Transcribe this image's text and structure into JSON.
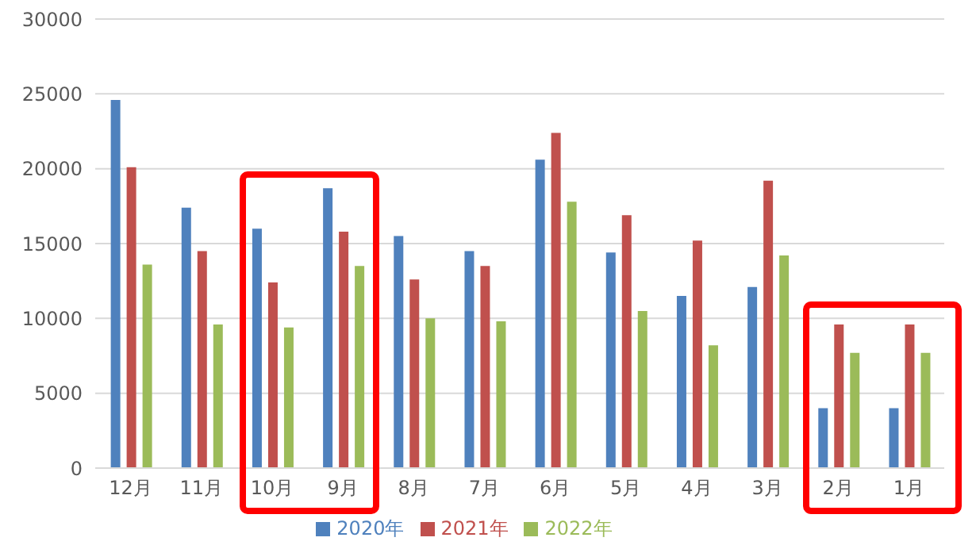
{
  "chart_data": {
    "type": "bar",
    "categories": [
      "12月",
      "11月",
      "10月",
      "9月",
      "8月",
      "7月",
      "6月",
      "5月",
      "4月",
      "3月",
      "2月",
      "1月"
    ],
    "series": [
      {
        "name": "2020年",
        "color": "#4f81bd",
        "values": [
          24600,
          17400,
          16000,
          18700,
          15500,
          14500,
          20600,
          14400,
          11500,
          12100,
          4000,
          4000
        ]
      },
      {
        "name": "2021年",
        "color": "#c0504d",
        "values": [
          20100,
          14500,
          12400,
          15800,
          12600,
          13500,
          22400,
          16900,
          15200,
          19200,
          9600,
          9600
        ]
      },
      {
        "name": "2022年",
        "color": "#9bbb59",
        "values": [
          13600,
          9600,
          9400,
          13500,
          10000,
          9800,
          17800,
          10500,
          8200,
          14200,
          7700,
          7700
        ]
      }
    ],
    "ylim": [
      0,
      30000
    ],
    "yticks": [
      0,
      5000,
      10000,
      15000,
      20000,
      25000,
      30000
    ],
    "grid": "y",
    "legend": "bottom"
  }
}
